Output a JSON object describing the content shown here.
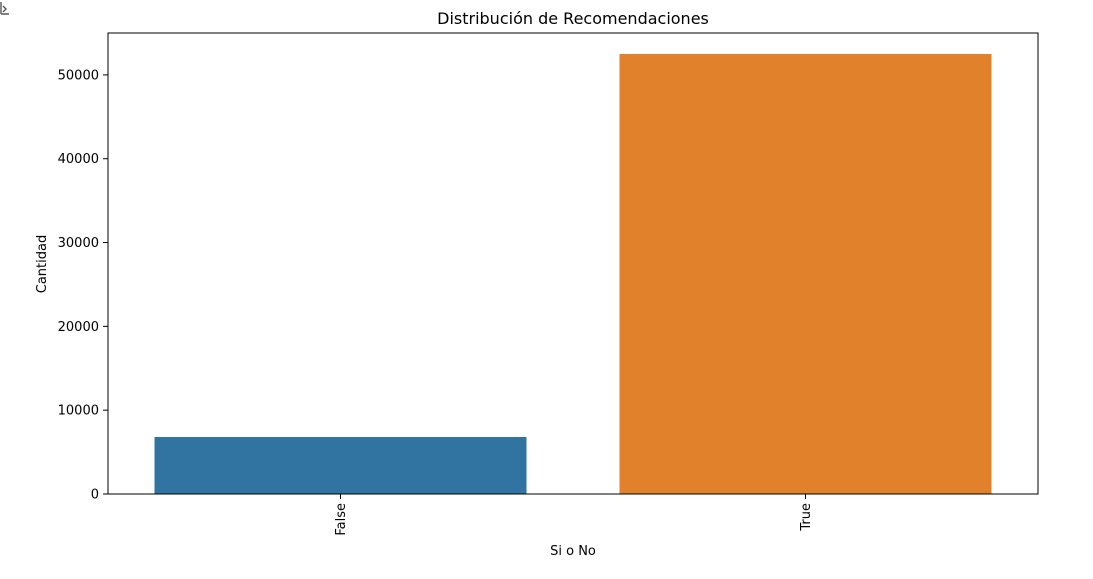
{
  "chart_data": {
    "type": "bar",
    "title": "Distribución de Recomendaciones",
    "xlabel": "Si o No",
    "ylabel": "Cantidad",
    "categories": [
      "False",
      "True"
    ],
    "values": [
      6800,
      52500
    ],
    "colors": [
      "#3274a1",
      "#e1812c"
    ],
    "ylim": [
      0,
      55000
    ],
    "yticks": [
      0,
      10000,
      20000,
      30000,
      40000,
      50000
    ],
    "ytick_labels": [
      "0",
      "10000",
      "20000",
      "30000",
      "40000",
      "50000"
    ],
    "grid": false,
    "xtick_rotation": "vertical"
  }
}
